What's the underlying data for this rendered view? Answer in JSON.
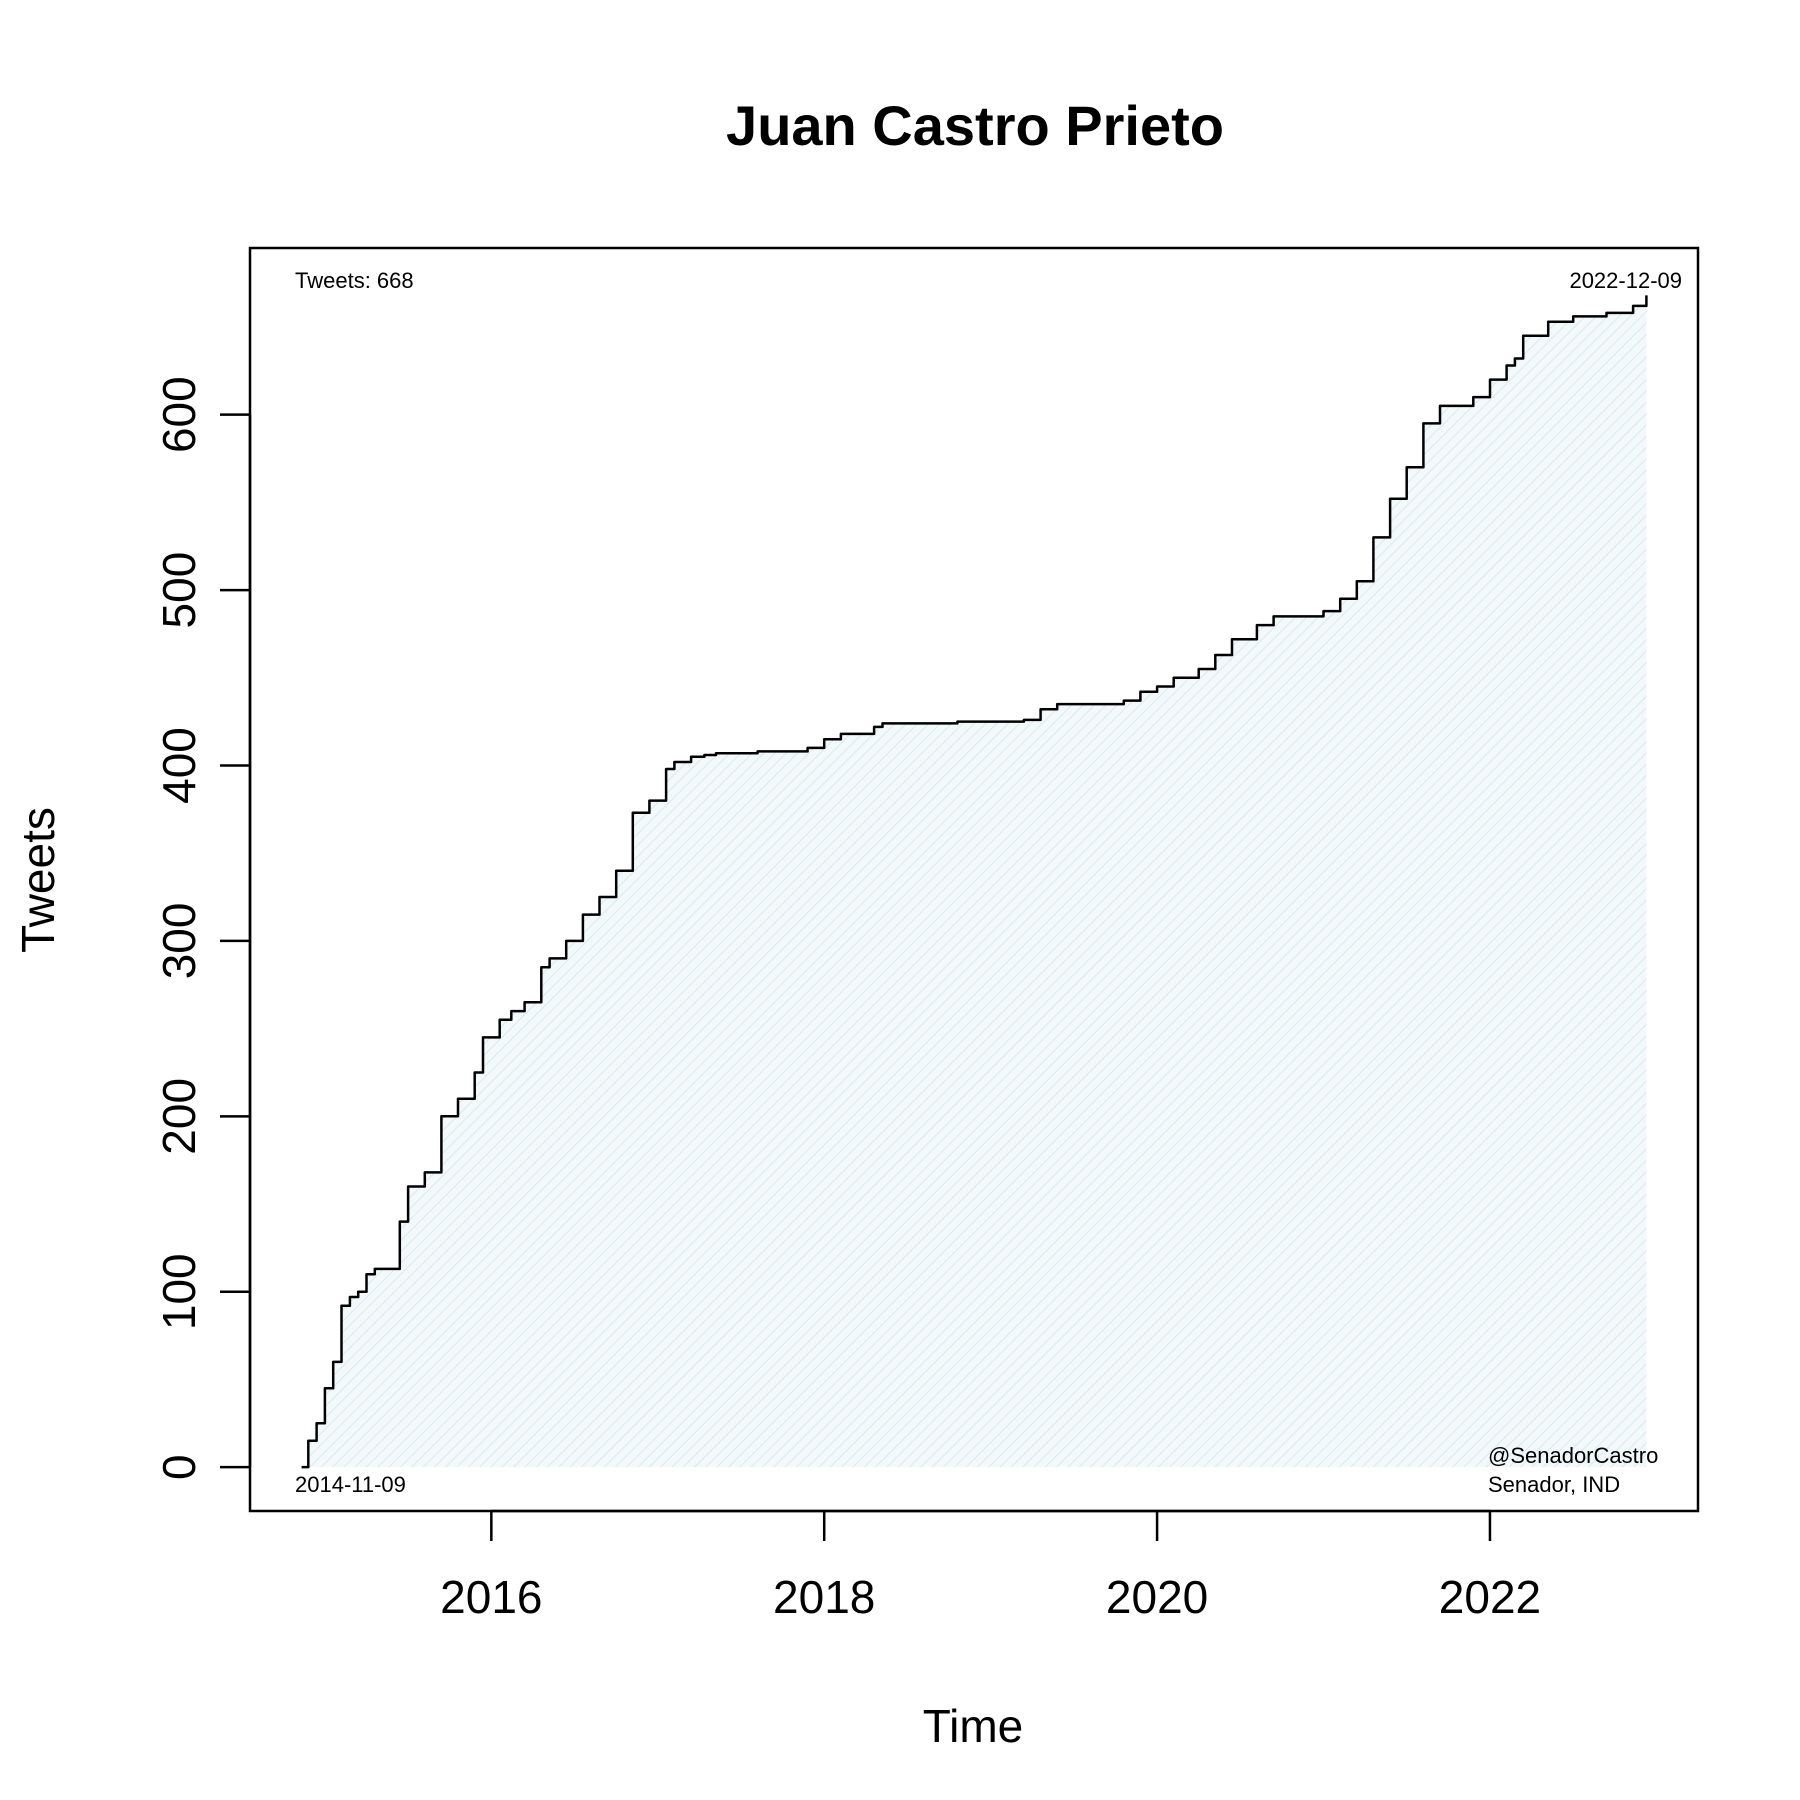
{
  "chart_data": {
    "type": "area",
    "title": "Juan Castro Prieto",
    "xlabel": "Time",
    "ylabel": "Tweets",
    "xlim": [
      2014.55,
      2023.25
    ],
    "ylim": [
      -25,
      695
    ],
    "x_ticks": [
      2016,
      2018,
      2020,
      2022
    ],
    "y_ticks": [
      0,
      100,
      200,
      300,
      400,
      500,
      600
    ],
    "annotations": {
      "top_left": "Tweets: 668",
      "top_right": "2022-12-09",
      "bottom_left": "2014-11-09",
      "bottom_right_line1": "@SenadorCastro",
      "bottom_right_line2": "Senador, IND"
    },
    "line_color": "#000000",
    "fill_color": "#e3f1f4",
    "series": [
      {
        "x": [
          2014.86,
          2014.9,
          2014.95,
          2015.0,
          2015.05,
          2015.1,
          2015.15,
          2015.2,
          2015.25,
          2015.3,
          2015.45,
          2015.5,
          2015.6,
          2015.7,
          2015.8,
          2015.9,
          2015.95,
          2016.05,
          2016.12,
          2016.2,
          2016.3,
          2016.35,
          2016.45,
          2016.55,
          2016.65,
          2016.75,
          2016.85,
          2016.95,
          2017.05,
          2017.1,
          2017.2,
          2017.28,
          2017.35,
          2017.6,
          2017.9,
          2018.0,
          2018.1,
          2018.3,
          2018.35,
          2018.8,
          2019.2,
          2019.3,
          2019.4,
          2019.8,
          2019.9,
          2020.0,
          2020.1,
          2020.25,
          2020.35,
          2020.45,
          2020.6,
          2020.7,
          2021.0,
          2021.1,
          2021.2,
          2021.3,
          2021.4,
          2021.5,
          2021.6,
          2021.7,
          2021.75,
          2021.9,
          2022.0,
          2022.1,
          2022.15,
          2022.2,
          2022.35,
          2022.5,
          2022.7,
          2022.86,
          2022.94
        ],
        "y": [
          0,
          15,
          25,
          45,
          60,
          92,
          97,
          100,
          110,
          113,
          140,
          160,
          168,
          200,
          210,
          225,
          245,
          255,
          260,
          265,
          285,
          290,
          300,
          315,
          325,
          340,
          373,
          380,
          398,
          402,
          405,
          406,
          407,
          408,
          410,
          415,
          418,
          422,
          424,
          425,
          426,
          432,
          435,
          437,
          442,
          445,
          450,
          455,
          463,
          472,
          480,
          485,
          488,
          495,
          505,
          530,
          552,
          570,
          595,
          605,
          605,
          610,
          620,
          628,
          632,
          645,
          653,
          656,
          658,
          662,
          668
        ]
      }
    ]
  }
}
